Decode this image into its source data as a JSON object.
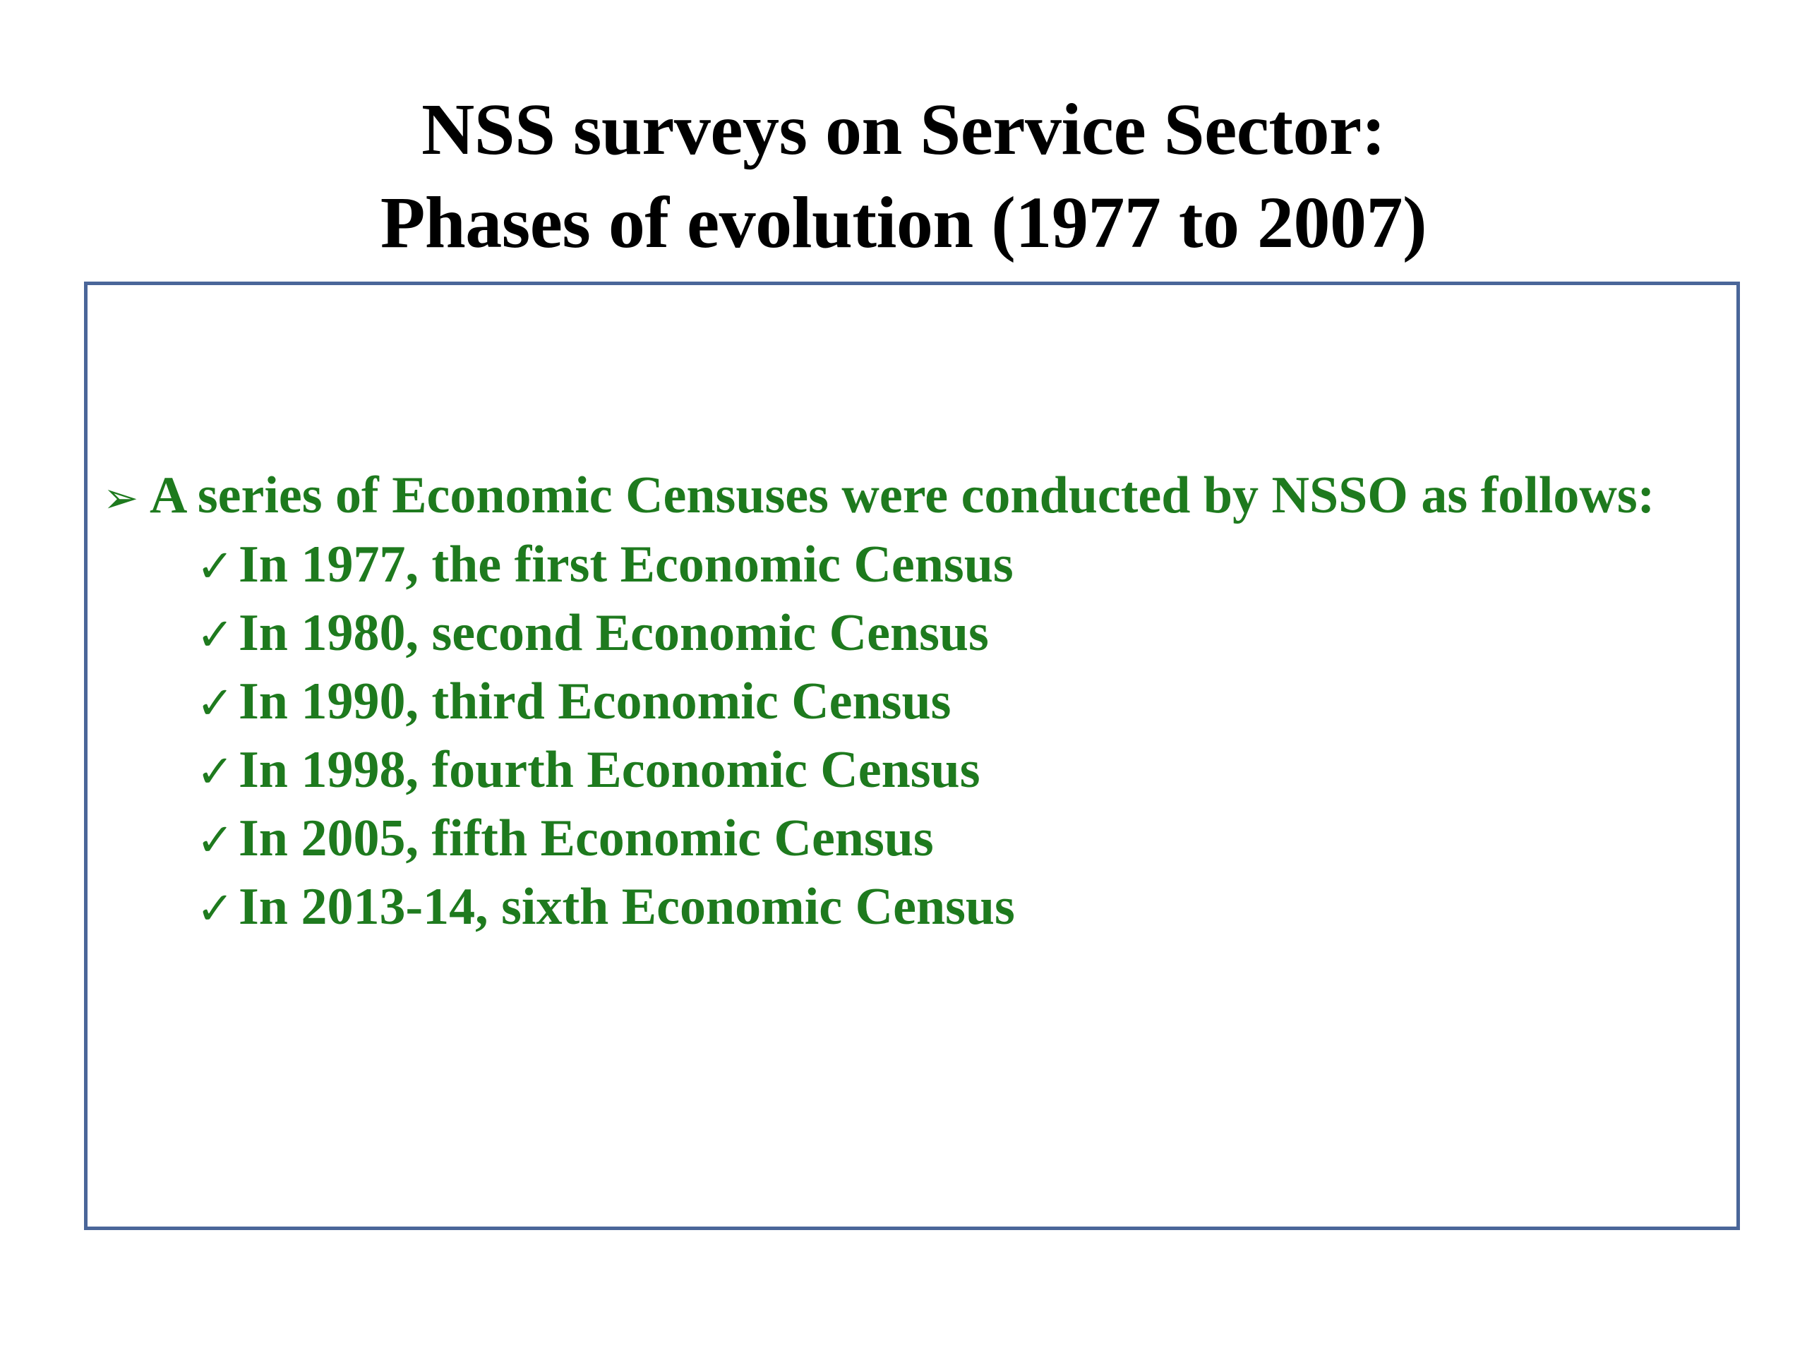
{
  "slide": {
    "title_line_1": "NSS surveys on Service Sector:",
    "title_line_2": "Phases of evolution (1977 to 2007)"
  },
  "content": {
    "lead_icon": "arrow-bullet-icon",
    "lead_text": "A series of Economic Censuses were conducted by NSSO as follows:",
    "item_icon": "checkmark-icon",
    "items": [
      "In 1977, the first Economic Census",
      "In 1980, second Economic Census",
      "In 1990, third Economic Census",
      "In 1998, fourth Economic Census",
      "In 2005, fifth Economic Census",
      "In 2013-14, sixth Economic Census"
    ]
  },
  "colors": {
    "title": "#000000",
    "body_text": "#1e7a1e",
    "box_border": "#4a6699",
    "background": "#ffffff"
  }
}
